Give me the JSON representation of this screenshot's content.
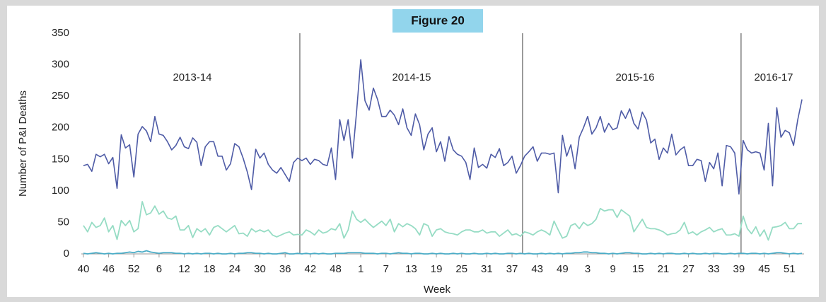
{
  "chart_data": {
    "type": "line",
    "annotations": [
      "Figure 20",
      "2013-14",
      "2014-15",
      "2015-16",
      "2016-17"
    ],
    "ylabel": "Number of P&I Deaths",
    "xlabel": "Week",
    "categories": [
      "40",
      null,
      null,
      null,
      null,
      null,
      "46",
      null,
      null,
      null,
      null,
      null,
      "52",
      null,
      null,
      null,
      null,
      null,
      "6",
      null,
      null,
      null,
      null,
      null,
      "12",
      null,
      null,
      null,
      null,
      null,
      "18",
      null,
      null,
      null,
      null,
      null,
      "24",
      null,
      null,
      null,
      null,
      null,
      "30",
      null,
      null,
      null,
      null,
      null,
      "36",
      null,
      null,
      null,
      null,
      null,
      "42",
      null,
      null,
      null,
      null,
      null,
      "48",
      null,
      null,
      null,
      null,
      null,
      "1",
      null,
      null,
      null,
      null,
      null,
      "7",
      null,
      null,
      null,
      null,
      null,
      "13",
      null,
      null,
      null,
      null,
      null,
      "19",
      null,
      null,
      null,
      null,
      null,
      "25",
      null,
      null,
      null,
      null,
      null,
      "31",
      null,
      null,
      null,
      null,
      null,
      "37",
      null,
      null,
      null,
      null,
      null,
      "43",
      null,
      null,
      null,
      null,
      null,
      "49",
      null,
      null,
      null,
      null,
      null,
      "3",
      null,
      null,
      null,
      null,
      null,
      "9",
      null,
      null,
      null,
      null,
      null,
      "15",
      null,
      null,
      null,
      null,
      null,
      "21",
      null,
      null,
      null,
      null,
      null,
      "27",
      null,
      null,
      null,
      null,
      null,
      "33",
      null,
      null,
      null,
      null,
      null,
      "39",
      null,
      null,
      null,
      null,
      null,
      "45",
      null,
      null,
      null,
      null,
      null,
      "51",
      null,
      null,
      null
    ],
    "series": [
      {
        "color": "#4e5ba6",
        "values": [
          140,
          142,
          131,
          158,
          154,
          158,
          143,
          153,
          104,
          189,
          168,
          173,
          122,
          190,
          202,
          195,
          178,
          218,
          190,
          188,
          178,
          165,
          172,
          185,
          170,
          167,
          184,
          177,
          140,
          170,
          178,
          178,
          155,
          155,
          133,
          143,
          175,
          170,
          152,
          130,
          102,
          166,
          152,
          160,
          142,
          133,
          128,
          137,
          126,
          115,
          145,
          152,
          148,
          152,
          142,
          150,
          148,
          142,
          140,
          168,
          118,
          213,
          180,
          213,
          152,
          225,
          308,
          243,
          228,
          263,
          245,
          218,
          218,
          228,
          220,
          205,
          230,
          200,
          188,
          222,
          205,
          165,
          190,
          200,
          162,
          178,
          147,
          186,
          165,
          158,
          155,
          145,
          118,
          168,
          137,
          142,
          136,
          158,
          153,
          167,
          140,
          145,
          155,
          128,
          140,
          155,
          162,
          170,
          147,
          160,
          160,
          158,
          160,
          97,
          188,
          155,
          173,
          135,
          185,
          200,
          218,
          190,
          200,
          218,
          193,
          207,
          197,
          200,
          227,
          215,
          230,
          207,
          198,
          225,
          212,
          176,
          182,
          150,
          168,
          160,
          190,
          157,
          165,
          170,
          140,
          140,
          150,
          148,
          115,
          145,
          135,
          160,
          108,
          172,
          170,
          160,
          95,
          180,
          165,
          160,
          162,
          160,
          133,
          207,
          108,
          232,
          185,
          196,
          192,
          172,
          213,
          245
        ]
      },
      {
        "color": "#96dcc4",
        "values": [
          45,
          35,
          50,
          42,
          45,
          57,
          35,
          45,
          23,
          53,
          45,
          53,
          35,
          40,
          83,
          62,
          65,
          76,
          63,
          68,
          57,
          55,
          60,
          38,
          38,
          45,
          26,
          40,
          35,
          40,
          30,
          42,
          45,
          40,
          35,
          40,
          45,
          32,
          33,
          28,
          40,
          35,
          38,
          35,
          38,
          30,
          27,
          30,
          33,
          35,
          30,
          31,
          30,
          38,
          35,
          30,
          38,
          33,
          35,
          40,
          38,
          48,
          25,
          38,
          68,
          55,
          50,
          55,
          48,
          42,
          47,
          52,
          45,
          55,
          35,
          48,
          43,
          48,
          45,
          40,
          30,
          48,
          45,
          28,
          38,
          40,
          35,
          33,
          32,
          30,
          35,
          38,
          38,
          35,
          35,
          38,
          33,
          35,
          35,
          28,
          33,
          38,
          30,
          32,
          28,
          35,
          33,
          30,
          35,
          38,
          35,
          30,
          52,
          38,
          25,
          28,
          45,
          48,
          40,
          50,
          45,
          48,
          55,
          72,
          68,
          70,
          70,
          58,
          70,
          65,
          60,
          35,
          45,
          55,
          42,
          40,
          40,
          38,
          35,
          30,
          32,
          33,
          38,
          50,
          32,
          35,
          30,
          35,
          38,
          42,
          35,
          38,
          40,
          30,
          30,
          32,
          28,
          60,
          40,
          32,
          43,
          28,
          38,
          22,
          42,
          43,
          45,
          50,
          40,
          40,
          48,
          48
        ]
      },
      {
        "color": "#4bacc6",
        "values": [
          1,
          0,
          1,
          2,
          1,
          0,
          1,
          0,
          1,
          1,
          2,
          3,
          2,
          4,
          3,
          5,
          3,
          2,
          1,
          2,
          2,
          2,
          1,
          1,
          0,
          1,
          0,
          1,
          0,
          1,
          1,
          0,
          1,
          0,
          0,
          1,
          0,
          1,
          1,
          2,
          2,
          1,
          1,
          0,
          1,
          0,
          0,
          1,
          2,
          0,
          0,
          1,
          0,
          1,
          0,
          1,
          0,
          1,
          0,
          0,
          1,
          1,
          1,
          2,
          2,
          2,
          2,
          1,
          1,
          1,
          0,
          1,
          1,
          0,
          1,
          2,
          1,
          1,
          0,
          1,
          1,
          0,
          0,
          1,
          0,
          1,
          0,
          0,
          1,
          0,
          1,
          0,
          0,
          1,
          0,
          0,
          1,
          0,
          1,
          0,
          0,
          1,
          1,
          0,
          1,
          0,
          1,
          0,
          0,
          1,
          0,
          1,
          0,
          1,
          0,
          1,
          1,
          2,
          2,
          3,
          3,
          2,
          2,
          1,
          1,
          0,
          1,
          0,
          1,
          2,
          2,
          1,
          1,
          0,
          0,
          1,
          0,
          1,
          0,
          1,
          1,
          0,
          0,
          1,
          0,
          1,
          0,
          0,
          1,
          0,
          1,
          1,
          0,
          0,
          1,
          0,
          1,
          1,
          0,
          1,
          1,
          0,
          1,
          0,
          1,
          2,
          2,
          1,
          0,
          1,
          0,
          1
        ]
      }
    ],
    "ylim": [
      0,
      350
    ],
    "yticks": [
      0,
      50,
      100,
      150,
      200,
      250,
      300,
      350
    ],
    "grid": false
  }
}
